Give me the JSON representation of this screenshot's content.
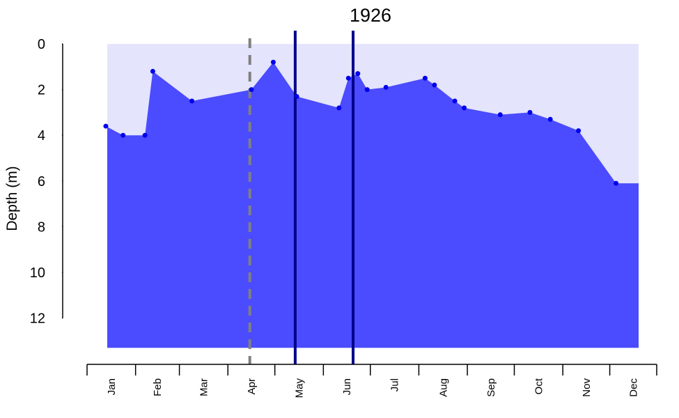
{
  "chart_data": {
    "type": "area",
    "title": "1926",
    "ylabel": "Depth (m)",
    "xlabel": "",
    "y_reversed": true,
    "ylim": [
      0,
      13.3
    ],
    "y_ticks": [
      0,
      2,
      4,
      6,
      8,
      10,
      12
    ],
    "y_tick_labels": [
      "0",
      "2",
      "4",
      "6",
      "8",
      "10",
      "12"
    ],
    "x_start": "1926-01-01",
    "x_end": "1926-12-31",
    "x_tick_dates": [
      "1926-01-01",
      "1926-02-01",
      "1926-03-01",
      "1926-04-01",
      "1926-05-01",
      "1926-06-01",
      "1926-07-01",
      "1926-08-01",
      "1926-09-01",
      "1926-10-01",
      "1926-11-01",
      "1926-12-01",
      "1926-12-31"
    ],
    "month_labels": [
      "Jan",
      "Feb",
      "Mar",
      "Apr",
      "May",
      "Jun",
      "Jul",
      "Aug",
      "Sep",
      "Oct",
      "Nov",
      "Dec"
    ],
    "background_band": {
      "y_from": 0,
      "y_to": 13.3,
      "color": "#e4e4fc"
    },
    "series": [
      {
        "fill_color": "#4b4bff",
        "point_color": "#0000ee",
        "points": [
          {
            "x": "1926-01-13",
            "y": 3.6
          },
          {
            "x": "1926-01-24",
            "y": 4.0
          },
          {
            "x": "1926-02-07",
            "y": 4.0
          },
          {
            "x": "1926-02-12",
            "y": 1.2
          },
          {
            "x": "1926-03-09",
            "y": 2.5
          },
          {
            "x": "1926-04-16",
            "y": 2.0
          },
          {
            "x": "1926-04-30",
            "y": 0.8
          },
          {
            "x": "1926-05-15",
            "y": 2.3
          },
          {
            "x": "1926-06-11",
            "y": 2.8
          },
          {
            "x": "1926-06-17",
            "y": 1.5
          },
          {
            "x": "1926-06-23",
            "y": 1.3
          },
          {
            "x": "1926-06-29",
            "y": 2.0
          },
          {
            "x": "1926-07-11",
            "y": 1.9
          },
          {
            "x": "1926-08-05",
            "y": 1.5
          },
          {
            "x": "1926-08-11",
            "y": 1.8
          },
          {
            "x": "1926-08-24",
            "y": 2.5
          },
          {
            "x": "1926-08-30",
            "y": 2.8
          },
          {
            "x": "1926-09-22",
            "y": 3.1
          },
          {
            "x": "1926-10-11",
            "y": 3.0
          },
          {
            "x": "1926-10-24",
            "y": 3.3
          },
          {
            "x": "1926-11-11",
            "y": 3.8
          },
          {
            "x": "1926-12-05",
            "y": 6.1
          }
        ]
      }
    ],
    "vertical_lines": [
      {
        "x": "1926-04-15",
        "style": "dashed",
        "color": "#808080"
      },
      {
        "x": "1926-05-14",
        "style": "solid",
        "color": "#00008b"
      },
      {
        "x": "1926-06-20",
        "style": "solid",
        "color": "#00008b"
      }
    ],
    "grid": false,
    "legend": "none"
  }
}
